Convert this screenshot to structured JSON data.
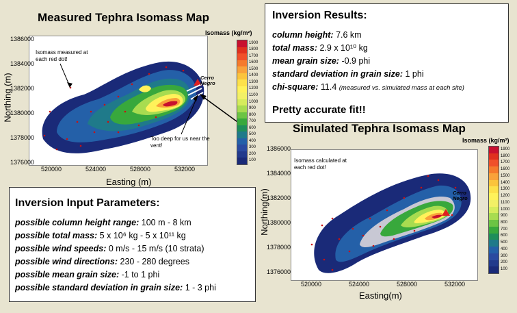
{
  "measured_map": {
    "title": "Measured Tephra Isomass Map",
    "legend_title": "Isomass (kg/m²)",
    "x_axis_label": "Easting (m)",
    "y_axis_label": "Northing (m)",
    "x_ticks": [
      "520000",
      "524000",
      "528000",
      "532000"
    ],
    "y_ticks": [
      "1386000",
      "1384000",
      "1382000",
      "1380000",
      "1378000",
      "1376000"
    ],
    "annotation_top": "Isomass measured at each red dot!",
    "annotation_bottom": "Too deep for us near the vent!",
    "volcano_label": "Cerro Negro"
  },
  "simulated_map": {
    "title": "Simulated Tephra Isomass Map",
    "legend_title": "Isomass (kg/m²)",
    "x_axis_label": "Easting(m)",
    "y_axis_label": "Northing(m)",
    "x_ticks": [
      "520000",
      "524000",
      "528000",
      "532000"
    ],
    "y_ticks": [
      "1386000",
      "1384000",
      "1382000",
      "1380000",
      "1378000",
      "1376000"
    ],
    "annotation_top": "Isomass calculated at each red dot!",
    "volcano_label": "Cerro Negro"
  },
  "legend_levels": [
    "1900",
    "1800",
    "1700",
    "1600",
    "1500",
    "1400",
    "1300",
    "1200",
    "1100",
    "1000",
    "900",
    "800",
    "700",
    "600",
    "500",
    "400",
    "300",
    "200",
    "100"
  ],
  "legend_colors": [
    "#c8102e",
    "#e0301e",
    "#f0502a",
    "#f57a2c",
    "#f9a23a",
    "#fbc43c",
    "#fde14a",
    "#fff25a",
    "#f2f066",
    "#d6ec5c",
    "#a8dc50",
    "#6cc444",
    "#38a83c",
    "#1e8e5a",
    "#1f7a8a",
    "#2460a8",
    "#2a4aa0",
    "#223a8c",
    "#1a2a78"
  ],
  "inversion_results": {
    "title": "Inversion Results:",
    "rows": [
      {
        "label": "column height:",
        "value": "7.6 km"
      },
      {
        "label": "total mass:",
        "value": "2.9 x 10¹⁰ kg"
      },
      {
        "label": "mean grain size:",
        "value": "-0.9 phi"
      },
      {
        "label": "standard deviation in grain size:",
        "value": "1 phi"
      },
      {
        "label": "chi-square:",
        "value": "11.4",
        "note": "(measured vs. simulated mass at each site)"
      }
    ],
    "conclusion": "Pretty accurate fit!!"
  },
  "inversion_inputs": {
    "title": "Inversion Input Parameters:",
    "rows": [
      {
        "label": "possible column height range:",
        "value": "100 m - 8 km"
      },
      {
        "label": "possible total mass:",
        "value": "5 x 10⁶ kg - 5 x 10¹¹ kg"
      },
      {
        "label": "possible wind speeds:",
        "value": "0 m/s - 15 m/s (10 strata)"
      },
      {
        "label": "possible wind directions:",
        "value": "230 - 280 degrees"
      },
      {
        "label": "possible mean grain size:",
        "value": "-1 to 1 phi"
      },
      {
        "label": "possible standard deviation in grain size:",
        "value": "1 - 3 phi"
      }
    ]
  }
}
